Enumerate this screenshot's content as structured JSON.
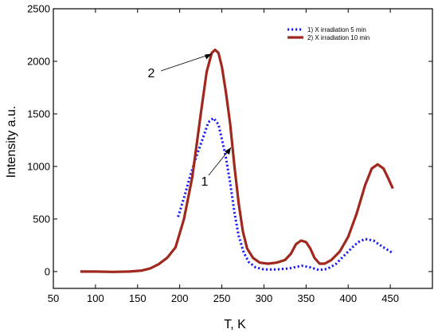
{
  "chart_data": {
    "type": "line",
    "xlabel": "T, K",
    "ylabel": "Intensity a.u.",
    "xlim": [
      50,
      500
    ],
    "ylim": [
      -160,
      2500
    ],
    "x_ticks": [
      50,
      100,
      150,
      200,
      250,
      300,
      350,
      400,
      450
    ],
    "y_ticks": [
      0,
      500,
      1000,
      1500,
      2000,
      2500
    ],
    "grid": false,
    "legend_position": "top-right",
    "series": [
      {
        "name": "1) X irradiation 5 min",
        "color": "#1a1aff",
        "style": "dotted",
        "points": [
          [
            198,
            520
          ],
          [
            205,
            700
          ],
          [
            212,
            900
          ],
          [
            220,
            1100
          ],
          [
            228,
            1280
          ],
          [
            234,
            1420
          ],
          [
            240,
            1460
          ],
          [
            246,
            1400
          ],
          [
            250,
            1260
          ],
          [
            255,
            1080
          ],
          [
            260,
            840
          ],
          [
            265,
            560
          ],
          [
            270,
            340
          ],
          [
            276,
            180
          ],
          [
            282,
            90
          ],
          [
            290,
            40
          ],
          [
            300,
            20
          ],
          [
            315,
            20
          ],
          [
            330,
            30
          ],
          [
            345,
            55
          ],
          [
            355,
            40
          ],
          [
            365,
            15
          ],
          [
            375,
            25
          ],
          [
            385,
            70
          ],
          [
            395,
            150
          ],
          [
            405,
            230
          ],
          [
            412,
            280
          ],
          [
            420,
            310
          ],
          [
            430,
            295
          ],
          [
            440,
            240
          ],
          [
            452,
            180
          ]
        ]
      },
      {
        "name": "2) X irradiation 10 min",
        "color": "#a0281e",
        "style": "solid",
        "points": [
          [
            82,
            0
          ],
          [
            100,
            0
          ],
          [
            120,
            -3
          ],
          [
            140,
            0
          ],
          [
            155,
            10
          ],
          [
            165,
            30
          ],
          [
            175,
            70
          ],
          [
            185,
            130
          ],
          [
            195,
            230
          ],
          [
            205,
            500
          ],
          [
            215,
            900
          ],
          [
            225,
            1500
          ],
          [
            232,
            1900
          ],
          [
            238,
            2080
          ],
          [
            242,
            2110
          ],
          [
            246,
            2080
          ],
          [
            250,
            1950
          ],
          [
            255,
            1700
          ],
          [
            260,
            1400
          ],
          [
            265,
            1000
          ],
          [
            270,
            650
          ],
          [
            275,
            380
          ],
          [
            280,
            220
          ],
          [
            287,
            130
          ],
          [
            295,
            85
          ],
          [
            305,
            75
          ],
          [
            315,
            85
          ],
          [
            325,
            110
          ],
          [
            332,
            170
          ],
          [
            338,
            260
          ],
          [
            344,
            295
          ],
          [
            350,
            280
          ],
          [
            355,
            220
          ],
          [
            360,
            130
          ],
          [
            366,
            75
          ],
          [
            372,
            75
          ],
          [
            380,
            110
          ],
          [
            390,
            190
          ],
          [
            400,
            330
          ],
          [
            410,
            550
          ],
          [
            420,
            820
          ],
          [
            428,
            980
          ],
          [
            435,
            1020
          ],
          [
            442,
            980
          ],
          [
            448,
            880
          ],
          [
            453,
            790
          ]
        ]
      }
    ],
    "annotations": [
      {
        "label": "2",
        "series": 2,
        "x": 242,
        "y": 2110
      },
      {
        "label": "1",
        "series": 1,
        "x": 258,
        "y": 1150
      }
    ]
  }
}
